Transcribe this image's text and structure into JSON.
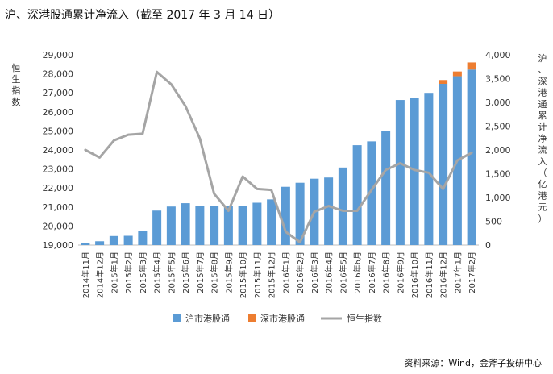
{
  "title": "沪、深港股通累计净流入（截至 2017 年 3 月 14 日）",
  "source": "资料来源：Wind，金斧子投研中心",
  "colors": {
    "hk_sh": "#5b9bd5",
    "hk_sz": "#ed7d31",
    "hsi": "#a5a5a5",
    "grid": "#d9d9d9",
    "axis_text": "#333333"
  },
  "chart_data": {
    "type": "bar",
    "title": "沪、深港股通累计净流入（截至 2017 年 3 月 14 日）",
    "categories": [
      "2014年11月",
      "2014年12月",
      "2015年1月",
      "2015年2月",
      "2015年3月",
      "2015年4月",
      "2015年5月",
      "2015年6月",
      "2015年7月",
      "2015年8月",
      "2015年9月",
      "2015年10月",
      "2015年11月",
      "2015年12月",
      "2016年1月",
      "2016年2月",
      "2016年3月",
      "2016年4月",
      "2016年5月",
      "2016年6月",
      "2016年7月",
      "2016年8月",
      "2016年9月",
      "2016年10月",
      "2016年11月",
      "2016年12月",
      "2017年1月",
      "2017年2月"
    ],
    "y_left": {
      "label": "恒生指数",
      "ticks": [
        "29,000",
        "28,000",
        "27,000",
        "26,000",
        "25,000",
        "24,000",
        "23,000",
        "22,000",
        "21,000",
        "20,000",
        "19,000"
      ],
      "ylim": [
        19000,
        29000
      ]
    },
    "y_right": {
      "label": "沪、深港通累计净流入（亿港元）",
      "ticks": [
        "4,000",
        "3,500",
        "3,000",
        "2,500",
        "2,000",
        "1,500",
        "1,000",
        "500",
        "0"
      ],
      "ylim": [
        0,
        4000
      ]
    },
    "series": [
      {
        "name": "沪市港股通",
        "kind": "bar",
        "axis": "right",
        "stacked": true,
        "values": [
          35,
          80,
          190,
          195,
          300,
          725,
          810,
          880,
          815,
          820,
          830,
          830,
          890,
          960,
          1225,
          1310,
          1395,
          1420,
          1630,
          2100,
          2180,
          2390,
          3050,
          3085,
          3200,
          3390,
          3550,
          3690
        ]
      },
      {
        "name": "深市港股通",
        "kind": "bar",
        "axis": "right",
        "stacked": true,
        "values": [
          0,
          0,
          0,
          0,
          0,
          0,
          0,
          0,
          0,
          0,
          0,
          0,
          0,
          0,
          0,
          0,
          0,
          0,
          0,
          0,
          0,
          0,
          0,
          0,
          0,
          80,
          100,
          150
        ]
      },
      {
        "name": "恒生指数",
        "kind": "line",
        "axis": "left",
        "values": [
          24000,
          23600,
          24500,
          24800,
          24850,
          28100,
          27450,
          26300,
          24600,
          21700,
          20800,
          22600,
          21950,
          21900,
          19700,
          19150,
          20750,
          21050,
          20800,
          20800,
          21900,
          22950,
          23300,
          22950,
          22800,
          21950,
          23450,
          23850
        ]
      }
    ],
    "legend_position": "bottom",
    "grid": false
  }
}
